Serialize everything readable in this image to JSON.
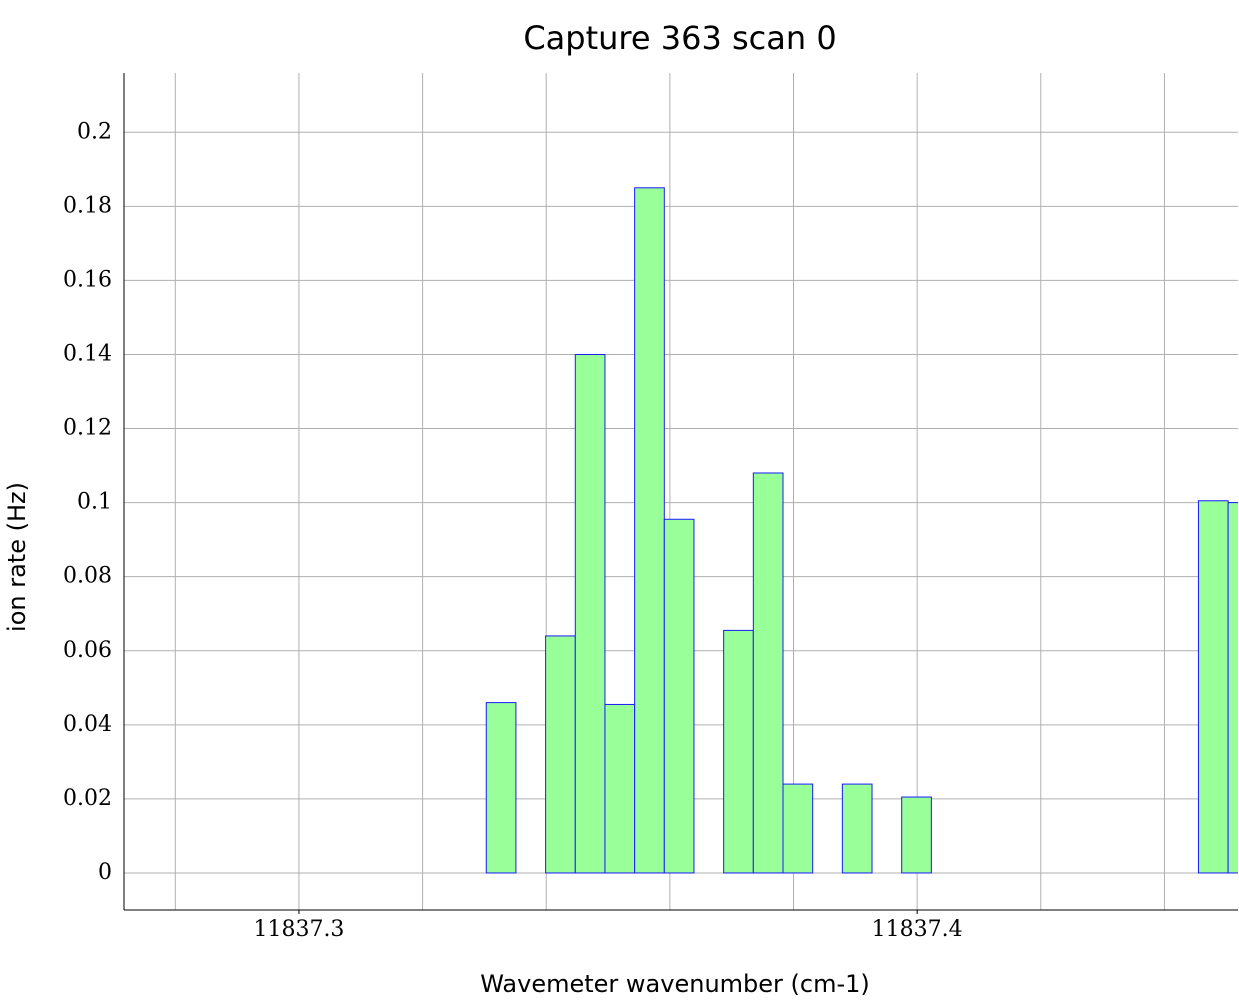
{
  "chart_data": {
    "type": "histogram",
    "title": "Capture 363 scan 0",
    "xlabel": "Wavemeter wavenumber (cm-1)",
    "ylabel": "ion rate (Hz)",
    "bins": [
      11837.3207,
      11837.3255,
      11837.3303,
      11837.3351,
      11837.3399,
      11837.3447,
      11837.3495,
      11837.3543,
      11837.3591,
      11837.3639,
      11837.3687,
      11837.3735,
      11837.3783,
      11837.3831,
      11837.3879,
      11837.3927,
      11837.3975,
      11837.4023,
      11837.4071,
      11837.4119,
      11837.4167,
      11837.4215,
      11837.4263,
      11837.4311,
      11837.4359,
      11837.4407,
      11837.4455,
      11837.4503,
      11837.4551
    ],
    "values": [
      0,
      0,
      0.046,
      0,
      0.064,
      0.14,
      0.0455,
      0.185,
      0.0955,
      0,
      0.0655,
      0.108,
      0.024,
      0,
      0.024,
      0,
      0.0205,
      0,
      0,
      0,
      0,
      0,
      0,
      0,
      0,
      0,
      0.1005,
      0.1
    ],
    "color": "#99ff99",
    "edge_color": "#1a1aff",
    "xlim": [
      11837.2717,
      11837.4519
    ],
    "ylim": [
      -0.01,
      0.216
    ],
    "xticks": [
      11837.3,
      11837.4
    ],
    "xgrid": [
      11837.28,
      11837.3,
      11837.32,
      11837.34,
      11837.36,
      11837.38,
      11837.4,
      11837.42,
      11837.44
    ],
    "yticks": [
      0,
      0.02,
      0.04,
      0.06,
      0.08,
      0.1,
      0.12,
      0.14,
      0.16,
      0.18,
      0.2
    ],
    "grid": true
  }
}
